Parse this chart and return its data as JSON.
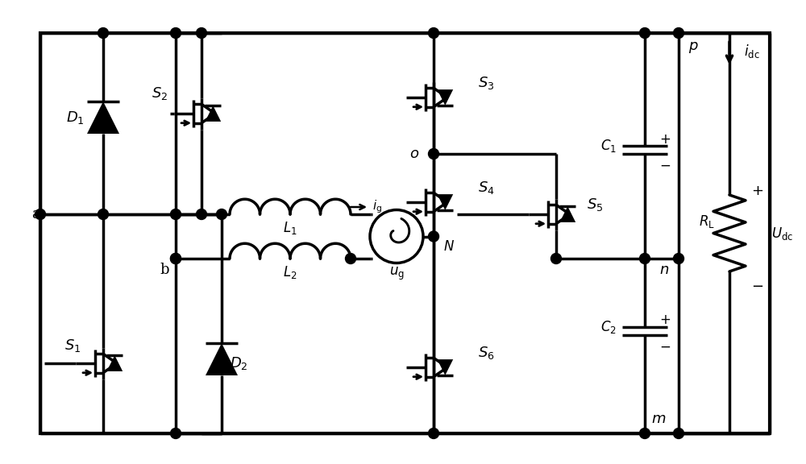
{
  "bg": "#ffffff",
  "lc": "#000000",
  "lw": 2.5,
  "lw_thin": 1.8
}
